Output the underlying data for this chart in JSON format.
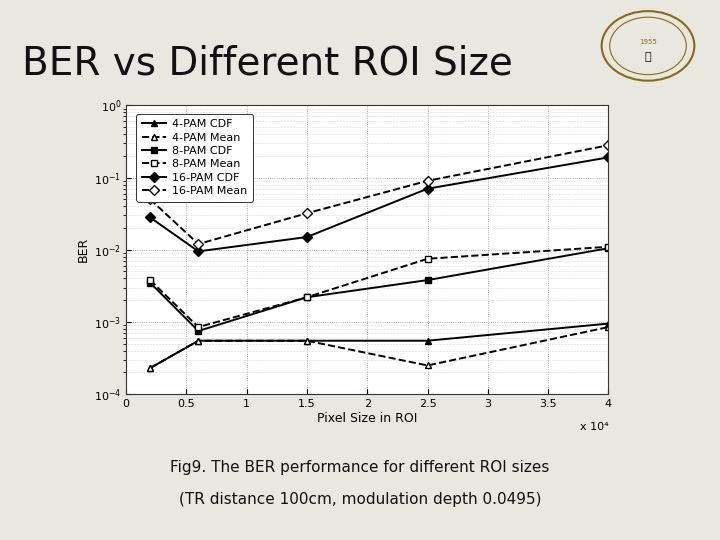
{
  "title": "BER vs Different ROI Size",
  "xlabel": "Pixel Size in ROI",
  "ylabel": "BER",
  "caption_line1": "Fig9. The BER performance for different ROI sizes",
  "caption_line2": "(TR distance 100cm, modulation depth 0.0495)",
  "x_scale_label": "x 10⁴",
  "xlim": [
    0,
    4.0
  ],
  "background_color": "#e8e8e0",
  "plot_bg_color": "#ffffff",
  "grid_color": "#aaaaaa",
  "series": [
    {
      "label": "4-PAM CDF",
      "linestyle": "solid",
      "marker": "^",
      "color": "#000000",
      "x": [
        0.2,
        0.6,
        1.5,
        2.5,
        4.0
      ],
      "y": [
        0.00023,
        0.00055,
        0.00055,
        0.00055,
        0.00095
      ]
    },
    {
      "label": "4-PAM Mean",
      "linestyle": "dashed",
      "marker": "^",
      "color": "#000000",
      "x": [
        0.2,
        0.6,
        1.5,
        2.5,
        4.0
      ],
      "y": [
        0.00023,
        0.00055,
        0.00055,
        0.00025,
        0.00085
      ]
    },
    {
      "label": "8-PAM CDF",
      "linestyle": "solid",
      "marker": "s",
      "color": "#000000",
      "x": [
        0.2,
        0.6,
        1.5,
        2.5,
        4.0
      ],
      "y": [
        0.0035,
        0.00075,
        0.0022,
        0.0038,
        0.0105
      ]
    },
    {
      "label": "8-PAM Mean",
      "linestyle": "dashed",
      "marker": "s",
      "color": "#000000",
      "x": [
        0.2,
        0.6,
        1.5,
        2.5,
        4.0
      ],
      "y": [
        0.0038,
        0.00085,
        0.0022,
        0.0075,
        0.011
      ]
    },
    {
      "label": "16-PAM CDF",
      "linestyle": "solid",
      "marker": "D",
      "color": "#000000",
      "x": [
        0.2,
        0.6,
        1.5,
        2.5,
        4.0
      ],
      "y": [
        0.028,
        0.0095,
        0.015,
        0.07,
        0.19
      ]
    },
    {
      "label": "16-PAM Mean",
      "linestyle": "dashed",
      "marker": "D",
      "color": "#000000",
      "x": [
        0.2,
        0.6,
        1.5,
        2.5,
        4.0
      ],
      "y": [
        0.05,
        0.012,
        0.032,
        0.09,
        0.28
      ]
    }
  ],
  "title_color": "#111111",
  "title_fontsize": 28,
  "axis_fontsize": 9,
  "legend_fontsize": 8,
  "tick_fontsize": 8,
  "caption_fontsize": 11,
  "linewidth": 1.4,
  "markersize": 5,
  "divider_color": "#7a9a6a",
  "bottom_bar_color": "#6a8a5a"
}
